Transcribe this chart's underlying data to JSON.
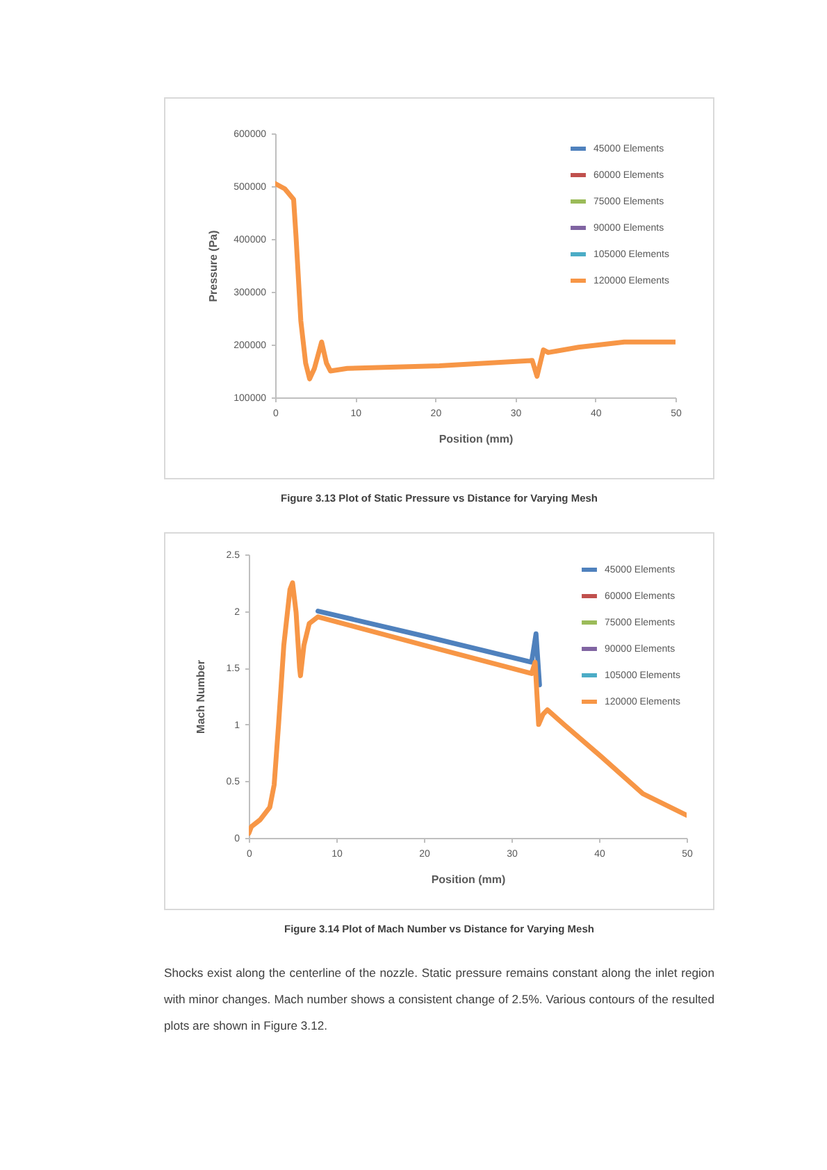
{
  "chart_data": [
    {
      "type": "line",
      "xlabel": "Position (mm)",
      "ylabel": "Pressure (Pa)",
      "x": [
        0,
        1.2,
        2.3,
        2.6,
        3.2,
        3.8,
        4.3,
        4.9,
        5.8,
        6.4,
        6.9,
        9,
        20.5,
        32.1,
        32.7,
        33.5,
        34.1,
        37.9,
        43.6,
        50
      ],
      "series": [
        {
          "name": "45000 Elements",
          "color": "#4f81bd",
          "values": [
            null,
            null,
            null,
            null,
            null,
            null,
            null,
            null,
            null,
            null,
            null,
            null,
            null,
            null,
            null,
            null,
            null,
            null,
            null,
            null
          ]
        },
        {
          "name": "60000 Elements",
          "color": "#c0504d",
          "values": [
            null,
            null,
            null,
            null,
            null,
            null,
            null,
            null,
            null,
            null,
            null,
            null,
            null,
            null,
            null,
            null,
            null,
            null,
            null,
            null
          ]
        },
        {
          "name": "75000 Elements",
          "color": "#9bbb59",
          "values": [
            null,
            null,
            null,
            null,
            null,
            null,
            null,
            null,
            null,
            null,
            null,
            null,
            null,
            null,
            null,
            null,
            null,
            null,
            null,
            null
          ]
        },
        {
          "name": "90000 Elements",
          "color": "#8064a2",
          "values": [
            null,
            null,
            null,
            null,
            null,
            null,
            null,
            null,
            null,
            null,
            null,
            null,
            null,
            null,
            null,
            null,
            null,
            null,
            null,
            null
          ]
        },
        {
          "name": "105000 Elements",
          "color": "#4bacc6",
          "values": [
            null,
            null,
            null,
            null,
            null,
            null,
            null,
            null,
            null,
            null,
            null,
            null,
            null,
            null,
            null,
            null,
            null,
            null,
            null,
            null
          ]
        },
        {
          "name": "120000 Elements",
          "color": "#f79646",
          "values": [
            505000,
            495000,
            475000,
            405000,
            245000,
            165000,
            135000,
            155000,
            205000,
            165000,
            150000,
            155000,
            160000,
            170000,
            140000,
            190000,
            185000,
            195000,
            205000,
            205000
          ]
        }
      ],
      "xlim": [
        0,
        50
      ],
      "xticks": [
        0,
        10,
        20,
        30,
        40,
        50
      ],
      "ylim": [
        100000,
        600000
      ],
      "yticks": [
        100000,
        200000,
        300000,
        400000,
        500000,
        600000
      ],
      "grid": false,
      "legend": "top right",
      "marker": "none",
      "line_style": "solid",
      "annotations": [
        "Figure 3.13 Plot of Static Pressure vs Distance for Varying Mesh"
      ]
    },
    {
      "type": "line",
      "xlabel": "Position (mm)",
      "ylabel": "Mach Number",
      "x": [
        0,
        0.3,
        1.3,
        2.4,
        2.9,
        3.4,
        4,
        4.7,
        5,
        5.4,
        5.8,
        5.9,
        6.3,
        6.9,
        7.9,
        20,
        32.3,
        32.7,
        33.1,
        33.6,
        34.1,
        36,
        40.2,
        45,
        50
      ],
      "series": [
        {
          "name": "45000 Elements",
          "color": "#4f81bd",
          "x": [
            7.9,
            20,
            32.3,
            32.8,
            33.2
          ],
          "values": [
            2.0,
            1.78,
            1.55,
            1.8,
            1.35
          ]
        },
        {
          "name": "60000 Elements",
          "color": "#c0504d",
          "values": [
            null,
            null,
            null,
            null,
            null,
            null,
            null,
            null,
            null,
            null,
            null,
            null,
            null,
            null,
            null,
            null,
            null,
            null,
            null,
            null,
            null,
            null,
            null,
            null,
            null
          ]
        },
        {
          "name": "75000 Elements",
          "color": "#9bbb59",
          "values": [
            null,
            null,
            null,
            null,
            null,
            null,
            null,
            null,
            null,
            null,
            null,
            null,
            null,
            null,
            null,
            null,
            null,
            null,
            null,
            null,
            null,
            null,
            null,
            null,
            null
          ]
        },
        {
          "name": "90000 Elements",
          "color": "#8064a2",
          "values": [
            null,
            null,
            null,
            null,
            null,
            null,
            null,
            null,
            null,
            null,
            null,
            null,
            null,
            null,
            null,
            null,
            null,
            null,
            null,
            null,
            null,
            null,
            null,
            null,
            null
          ]
        },
        {
          "name": "105000 Elements",
          "color": "#4bacc6",
          "values": [
            null,
            null,
            null,
            null,
            null,
            null,
            null,
            null,
            null,
            null,
            null,
            null,
            null,
            null,
            null,
            null,
            null,
            null,
            null,
            null,
            null,
            null,
            null,
            null,
            null
          ]
        },
        {
          "name": "120000 Elements",
          "color": "#f79646",
          "values": [
            0.04,
            0.1,
            0.16,
            0.27,
            0.47,
            1.0,
            1.7,
            2.19,
            2.25,
            1.99,
            1.5,
            1.43,
            1.7,
            1.89,
            1.95,
            1.7,
            1.45,
            1.55,
            1.0,
            1.09,
            1.13,
            1.0,
            0.72,
            0.39,
            0.2
          ]
        }
      ],
      "xlim": [
        0,
        50
      ],
      "xticks": [
        0,
        10,
        20,
        30,
        40,
        50
      ],
      "ylim": [
        0,
        2.5
      ],
      "yticks": [
        0,
        0.5,
        1,
        1.5,
        2,
        2.5
      ],
      "grid": false,
      "legend": "top right",
      "marker": "none",
      "line_style": "solid",
      "annotations": [
        "Figure 3.14 Plot of Mach Number vs Distance for Varying Mesh",
        "Shocks exist along the centerline of the nozzle. Static pressure remains constant along the inlet region with minor changes. Mach number shows a consistent change of 2.5%. Various contours of the resulted plots are shown in Figure 3.12."
      ]
    }
  ]
}
